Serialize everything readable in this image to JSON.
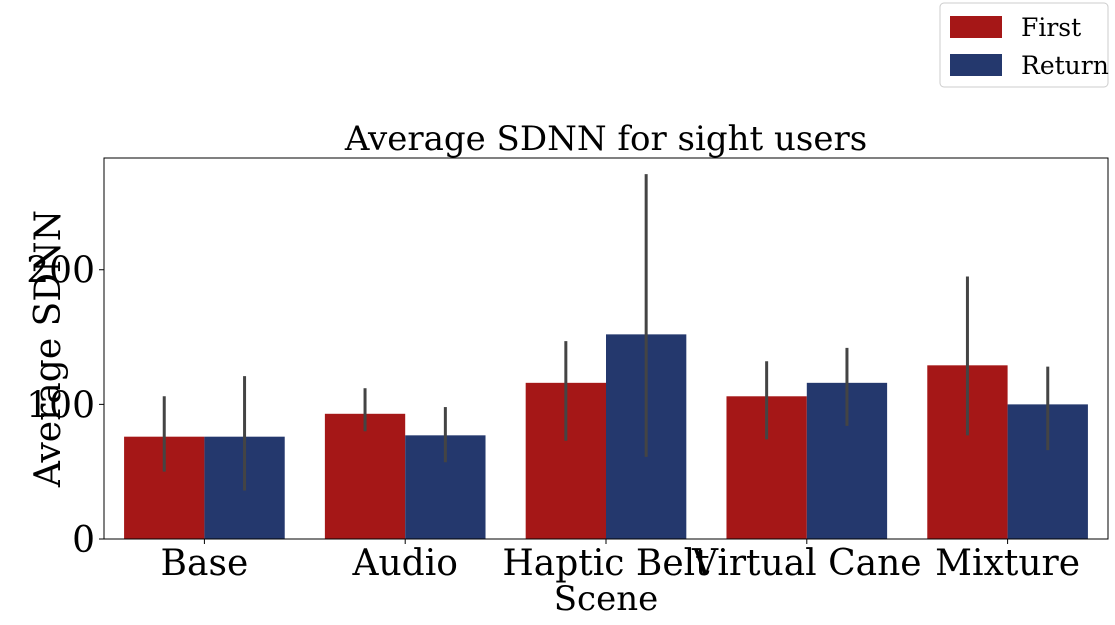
{
  "chart_data": {
    "type": "bar",
    "title": "Average SDNN for sight users",
    "xlabel": "Scene",
    "ylabel": "Average SDNN",
    "categories": [
      "Base",
      "Audio",
      "Haptic Belt",
      "Virtual Cane",
      "Mixture"
    ],
    "ylim": [
      0,
      283
    ],
    "yticks": [
      0,
      100,
      200
    ],
    "ytick_labels": [
      "0",
      "100",
      "200"
    ],
    "legend_position": "top-right, outside plot",
    "grid": false,
    "series": [
      {
        "name": "First",
        "color": "#a51717",
        "values": [
          76,
          93,
          116,
          106,
          129
        ],
        "error_low": [
          50,
          80,
          73,
          74,
          77
        ],
        "error_high": [
          106,
          112,
          147,
          132,
          195
        ]
      },
      {
        "name": "Return",
        "color": "#24386d",
        "values": [
          76,
          77,
          152,
          116,
          100
        ],
        "error_low": [
          36,
          57,
          61,
          84,
          66
        ],
        "error_high": [
          121,
          98,
          271,
          142,
          128
        ]
      }
    ],
    "error_bar_color": "#444444"
  }
}
